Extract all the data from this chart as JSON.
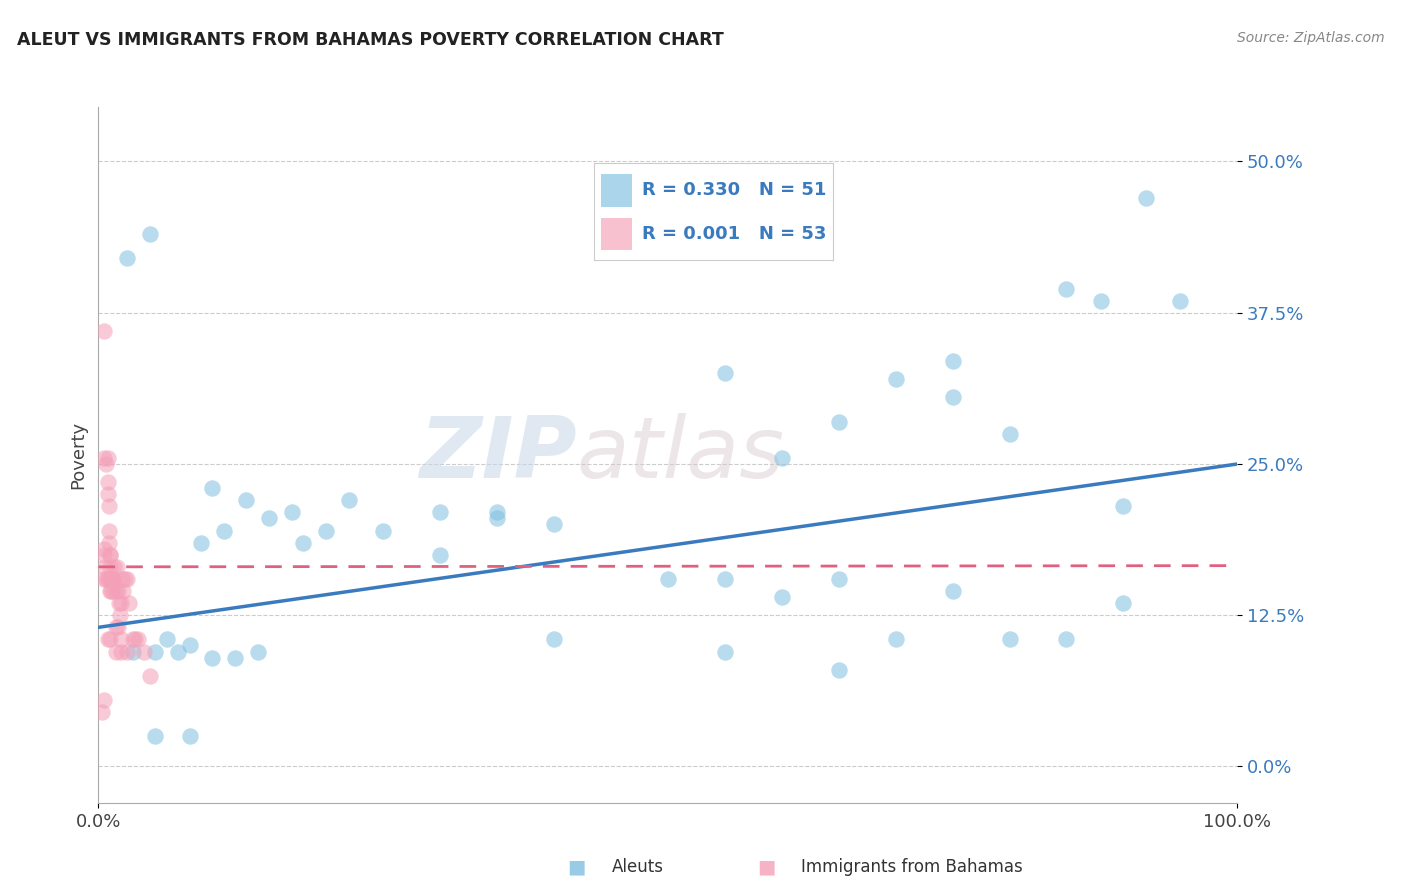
{
  "title": "ALEUT VS IMMIGRANTS FROM BAHAMAS POVERTY CORRELATION CHART",
  "source": "Source: ZipAtlas.com",
  "ylabel": "Poverty",
  "yticks": [
    0.0,
    0.125,
    0.25,
    0.375,
    0.5
  ],
  "ytick_labels": [
    "0.0%",
    "12.5%",
    "25.0%",
    "37.5%",
    "50.0%"
  ],
  "legend_label1": "Aleuts",
  "legend_label2": "Immigrants from Bahamas",
  "r1": "0.330",
  "n1": "51",
  "r2": "0.001",
  "n2": "53",
  "blue_color": "#7fbfdf",
  "pink_color": "#f4a0b8",
  "blue_line_color": "#3a7bbf",
  "pink_line_color": "#e06080",
  "watermark_zip": "ZIP",
  "watermark_atlas": "atlas",
  "blue_scatter_x": [
    0.025,
    0.045,
    0.1,
    0.13,
    0.17,
    0.22,
    0.3,
    0.35,
    0.4,
    0.5,
    0.55,
    0.6,
    0.65,
    0.7,
    0.75,
    0.8,
    0.85,
    0.9,
    0.92,
    0.95,
    0.03,
    0.05,
    0.07,
    0.08,
    0.1,
    0.12,
    0.14,
    0.3,
    0.4,
    0.55,
    0.65,
    0.7,
    0.75,
    0.8,
    0.85,
    0.9,
    0.55,
    0.65,
    0.75,
    0.88,
    0.05,
    0.08,
    0.06,
    0.09,
    0.11,
    0.15,
    0.18,
    0.2,
    0.25,
    0.35,
    0.6
  ],
  "blue_scatter_y": [
    0.42,
    0.44,
    0.23,
    0.22,
    0.21,
    0.22,
    0.21,
    0.21,
    0.2,
    0.155,
    0.155,
    0.14,
    0.155,
    0.32,
    0.305,
    0.275,
    0.395,
    0.215,
    0.47,
    0.385,
    0.095,
    0.095,
    0.095,
    0.1,
    0.09,
    0.09,
    0.095,
    0.175,
    0.105,
    0.095,
    0.08,
    0.105,
    0.145,
    0.105,
    0.105,
    0.135,
    0.325,
    0.285,
    0.335,
    0.385,
    0.025,
    0.025,
    0.105,
    0.185,
    0.195,
    0.205,
    0.185,
    0.195,
    0.195,
    0.205,
    0.255
  ],
  "pink_scatter_x": [
    0.005,
    0.005,
    0.005,
    0.007,
    0.008,
    0.008,
    0.008,
    0.009,
    0.009,
    0.009,
    0.01,
    0.01,
    0.01,
    0.011,
    0.012,
    0.013,
    0.014,
    0.015,
    0.016,
    0.017,
    0.018,
    0.019,
    0.02,
    0.021,
    0.022,
    0.023,
    0.025,
    0.027,
    0.03,
    0.032,
    0.035,
    0.04,
    0.045,
    0.005,
    0.005,
    0.006,
    0.007,
    0.008,
    0.009,
    0.01,
    0.011,
    0.012,
    0.013,
    0.015,
    0.017,
    0.02,
    0.025,
    0.003,
    0.005,
    0.008,
    0.01,
    0.015,
    0.02
  ],
  "pink_scatter_y": [
    0.36,
    0.175,
    0.18,
    0.25,
    0.255,
    0.235,
    0.225,
    0.215,
    0.195,
    0.185,
    0.175,
    0.175,
    0.165,
    0.155,
    0.155,
    0.145,
    0.165,
    0.145,
    0.165,
    0.145,
    0.135,
    0.125,
    0.135,
    0.155,
    0.145,
    0.155,
    0.155,
    0.135,
    0.105,
    0.105,
    0.105,
    0.095,
    0.075,
    0.255,
    0.155,
    0.165,
    0.155,
    0.155,
    0.155,
    0.145,
    0.145,
    0.155,
    0.155,
    0.115,
    0.115,
    0.095,
    0.095,
    0.045,
    0.055,
    0.105,
    0.105,
    0.095,
    0.105
  ],
  "blue_trendline_x": [
    0.0,
    1.0
  ],
  "blue_trendline_y": [
    0.115,
    0.25
  ],
  "pink_trendline_x": [
    0.0,
    1.0
  ],
  "pink_trendline_y": [
    0.165,
    0.166
  ],
  "xlim": [
    0.0,
    1.0
  ],
  "ylim": [
    -0.03,
    0.545
  ],
  "plot_bg": "#ffffff",
  "grid_color": "#cccccc"
}
